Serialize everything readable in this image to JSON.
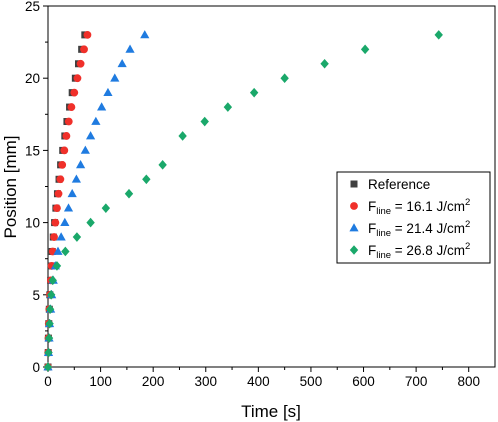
{
  "chart_data": {
    "type": "scatter",
    "xlabel": "Time [s]",
    "ylabel": "Position [mm]",
    "xlim": [
      0,
      850
    ],
    "ylim": [
      0,
      25
    ],
    "xticks": [
      0,
      100,
      200,
      300,
      400,
      500,
      600,
      700,
      800
    ],
    "yticks": [
      0,
      5,
      10,
      15,
      20,
      25
    ],
    "grid": false,
    "legend_position": "center-right",
    "series": [
      {
        "name": "Reference",
        "legend_main": "Reference",
        "legend_sub": "",
        "legend_rest": "",
        "legend_sup": "",
        "marker": "square",
        "color": "#404040",
        "x": [
          0,
          0.4,
          0.8,
          1.5,
          2.5,
          3.5,
          5,
          6.5,
          8,
          10,
          12.5,
          15,
          18,
          21,
          24,
          28,
          32,
          36,
          41,
          46,
          52,
          58,
          64,
          70
        ],
        "y": [
          0,
          1,
          2,
          3,
          4,
          5,
          6,
          7,
          8,
          9,
          10,
          11,
          12,
          13,
          14,
          15,
          16,
          17,
          18,
          19,
          20,
          21,
          22,
          23
        ]
      },
      {
        "name": "F_line = 16.1 J/cm2",
        "legend_main": "F",
        "legend_sub": "line",
        "legend_rest": " = 16.1 J/cm",
        "legend_sup": "2",
        "marker": "circle",
        "color": "#f0302a",
        "x": [
          0,
          0.4,
          0.8,
          1.5,
          2.5,
          4,
          5.5,
          7,
          9,
          11.5,
          14,
          17,
          20,
          23.5,
          27,
          31,
          35,
          39.5,
          44.5,
          50,
          56,
          62,
          68.5,
          75
        ],
        "y": [
          0,
          1,
          2,
          3,
          4,
          5,
          6,
          7,
          8,
          9,
          10,
          11,
          12,
          13,
          14,
          15,
          16,
          17,
          18,
          19,
          20,
          21,
          22,
          23
        ]
      },
      {
        "name": "F_line = 21.4 J/cm2",
        "legend_main": "F",
        "legend_sub": "line",
        "legend_rest": " = 21.4 J/cm",
        "legend_sup": "2",
        "marker": "triangle",
        "color": "#1f7be0",
        "x": [
          0,
          1,
          2,
          3,
          5,
          7,
          10,
          14,
          19,
          25,
          32,
          39,
          46,
          54,
          62,
          71,
          81,
          91,
          102,
          114,
          127,
          141,
          156,
          184
        ],
        "y": [
          0,
          1,
          2,
          3,
          4,
          5,
          6,
          7,
          8,
          9,
          10,
          11,
          12,
          13,
          14,
          15,
          16,
          17,
          18,
          19,
          20,
          21,
          22,
          23
        ]
      },
      {
        "name": "F_line = 26.8 J/cm2",
        "legend_main": "F",
        "legend_sub": "line",
        "legend_rest": " = 26.8 J/cm",
        "legend_sup": "2",
        "marker": "diamond",
        "color": "#1aa86a",
        "x": [
          0,
          1,
          2,
          3,
          4,
          6,
          9,
          17,
          33,
          55,
          81,
          110,
          154,
          187,
          218,
          256,
          298,
          342,
          392,
          450,
          526,
          603,
          743
        ],
        "y": [
          0,
          1,
          2,
          3,
          4,
          5,
          6,
          7,
          8,
          9,
          10,
          11,
          12,
          13,
          14,
          16,
          17,
          18,
          19,
          20,
          21,
          22,
          23
        ]
      }
    ]
  }
}
